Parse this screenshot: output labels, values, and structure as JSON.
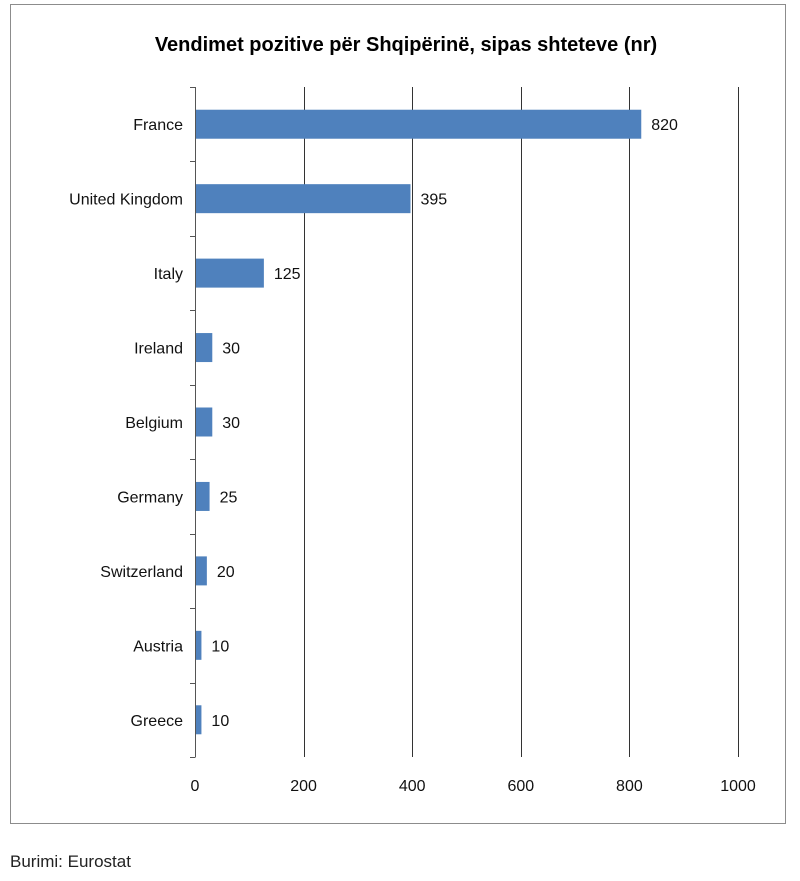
{
  "source_note": "Burimi: Eurostat",
  "chart_data": {
    "type": "bar",
    "orientation": "horizontal",
    "title": "Vendimet pozitive për Shqipërinë, sipas shteteve (nr)",
    "xlabel": "",
    "ylabel": "",
    "categories": [
      "France",
      "United Kingdom",
      "Italy",
      "Ireland",
      "Belgium",
      "Germany",
      "Switzerland",
      "Austria",
      "Greece"
    ],
    "values": [
      820,
      395,
      125,
      30,
      30,
      25,
      20,
      10,
      10
    ],
    "xlim": [
      0,
      1000
    ],
    "xticks": [
      0,
      200,
      400,
      600,
      800,
      1000
    ],
    "grid": true,
    "legend": "none",
    "data_labels": true,
    "bar_color": "#4f81bd",
    "grid_color": "#333333"
  }
}
